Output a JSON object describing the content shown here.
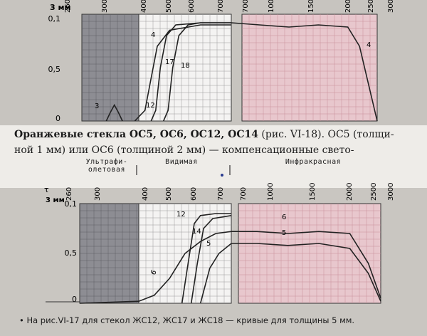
{
  "caption": {
    "title": "Оранжевые стекла ОС5, ОС6, ОС12, ОС14",
    "ref": "(рис. VI-18).",
    "body_line1_tail": "ОС5 (толщи-",
    "body_line2": "ной 1 мм) или ОС6 (толщиной 2 мм) — компенсационные свето-"
  },
  "regions": {
    "uv": "Ультрафи-олетовая",
    "visible": "Видимая",
    "ir": "Инфракрасная"
  },
  "footnote": "На рис.VI-17 для стекол ЖС12, ЖС17 и ЖС18 — кривые для толщины 5 мм.",
  "axis": {
    "thickness_label": "3 мм",
    "tau_label": "τ",
    "y_ticks": [
      "0,1",
      "0,5",
      "0"
    ],
    "wavelength_ticks_left_bottom": [
      "260",
      "300",
      "400",
      "500",
      "600",
      "700"
    ],
    "wavelength_ticks_right_bottom": [
      "700",
      "1000",
      "1500",
      "2000",
      "2500",
      "3000"
    ],
    "wavelength_ticks_left_top": [
      "260",
      "300",
      "400",
      "500",
      "600",
      "700"
    ],
    "wavelength_ticks_right_top": [
      "700",
      "1000",
      "1500",
      "2000",
      "2500",
      "3000"
    ]
  },
  "curve_labels_top": [
    "3",
    "12",
    "17",
    "18",
    "4"
  ],
  "curve_labels_bottom": [
    "6",
    "12",
    "14",
    "5",
    "6",
    "5"
  ],
  "colors": {
    "uv_panel": "#8d8d93",
    "visible_panel": "#f4f3f2",
    "ir_panel": "#e8c7cd",
    "curve": "#222222"
  },
  "chart_data": [
    {
      "type": "line",
      "title": "",
      "xlabel": "",
      "ylabel": "",
      "ylim": [
        0,
        1
      ],
      "series": [
        {
          "name": "12",
          "x": [
            390,
            420,
            440,
            460,
            500,
            600,
            700
          ],
          "y": [
            0.0,
            0.1,
            0.4,
            0.7,
            0.85,
            0.9,
            0.9
          ]
        },
        {
          "name": "17",
          "x": [
            440,
            455,
            470,
            490,
            520,
            600,
            700
          ],
          "y": [
            0.0,
            0.1,
            0.5,
            0.8,
            0.9,
            0.92,
            0.92
          ]
        },
        {
          "name": "18",
          "x": [
            480,
            495,
            510,
            530,
            560,
            600,
            700
          ],
          "y": [
            0.0,
            0.1,
            0.5,
            0.8,
            0.9,
            0.92,
            0.92
          ]
        },
        {
          "name": "3",
          "x": [
            320,
            330,
            340,
            350,
            360
          ],
          "y": [
            0.0,
            0.08,
            0.15,
            0.08,
            0.0
          ]
        },
        {
          "name": "4",
          "x": [
            700,
            1000,
            1500,
            2000,
            2500,
            2700,
            3000
          ],
          "y": [
            0.92,
            0.9,
            0.88,
            0.9,
            0.88,
            0.7,
            0.0
          ]
        }
      ]
    },
    {
      "type": "line",
      "title": "",
      "xlabel": "",
      "ylabel": "τ",
      "ylim": [
        0,
        1
      ],
      "series": [
        {
          "name": "6",
          "x": [
            260,
            400,
            450,
            500,
            550,
            600,
            650,
            700,
            1000,
            1500,
            2000,
            2500,
            2800,
            3000
          ],
          "y": [
            0.0,
            0.02,
            0.08,
            0.25,
            0.5,
            0.62,
            0.7,
            0.72,
            0.72,
            0.7,
            0.72,
            0.7,
            0.4,
            0.05
          ]
        },
        {
          "name": "12",
          "x": [
            540,
            560,
            580,
            600,
            650,
            700
          ],
          "y": [
            0.0,
            0.4,
            0.8,
            0.88,
            0.9,
            0.9
          ]
        },
        {
          "name": "14",
          "x": [
            570,
            590,
            610,
            640,
            700
          ],
          "y": [
            0.0,
            0.4,
            0.75,
            0.85,
            0.88
          ]
        },
        {
          "name": "5",
          "x": [
            600,
            630,
            660,
            700,
            1000,
            1500,
            2000,
            2500,
            2800,
            3000
          ],
          "y": [
            0.0,
            0.35,
            0.5,
            0.6,
            0.6,
            0.58,
            0.6,
            0.55,
            0.3,
            0.02
          ]
        }
      ]
    }
  ]
}
